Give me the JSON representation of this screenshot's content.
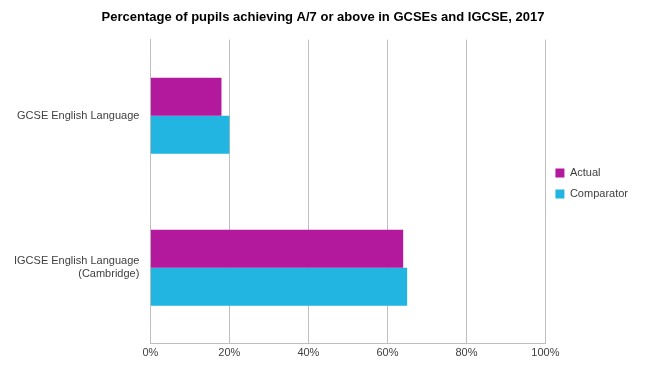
{
  "chart_data": {
    "type": "bar",
    "orientation": "horizontal",
    "title": "Percentage of pupils achieving A/7 or above in GCSEs and IGCSE, 2017",
    "categories": [
      "GCSE English Language",
      "IGCSE English Language (Cambridge)"
    ],
    "series": [
      {
        "name": "Actual",
        "color": "#b2199c",
        "values": [
          18,
          64
        ]
      },
      {
        "name": "Comparator",
        "color": "#22b5e2",
        "values": [
          20,
          65
        ]
      }
    ],
    "xlim": [
      0,
      100
    ],
    "xticks": [
      {
        "value": 0,
        "label": "0%"
      },
      {
        "value": 20,
        "label": "20%"
      },
      {
        "value": 40,
        "label": "40%"
      },
      {
        "value": 60,
        "label": "60%"
      },
      {
        "value": 80,
        "label": "80%"
      },
      {
        "value": 100,
        "label": "100%"
      }
    ],
    "grid": true,
    "legend": "right",
    "data_labels": false
  }
}
